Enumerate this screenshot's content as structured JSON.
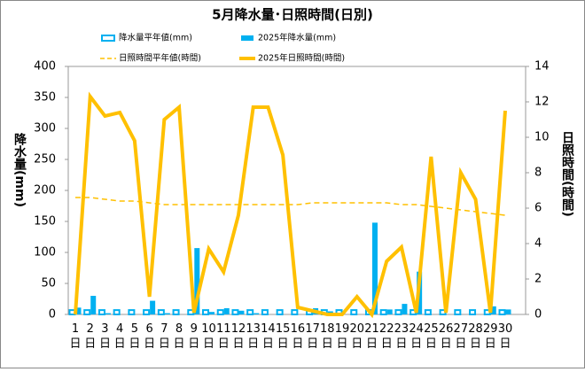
{
  "chart_data": {
    "type": "bar-line",
    "title": "5月降水量･日照時間(日別)",
    "y_label": "降水量(mm)",
    "y2_label": "日照時間(時間)",
    "categories": [
      "1日",
      "2日",
      "3日",
      "4日",
      "5日",
      "6日",
      "7日",
      "8日",
      "9日",
      "10日",
      "11日",
      "12日",
      "13日",
      "14日",
      "15日",
      "16日",
      "17日",
      "18日",
      "19日",
      "20日",
      "21日",
      "22日",
      "23日",
      "24日",
      "25日",
      "26日",
      "27日",
      "28日",
      "29日",
      "30日"
    ],
    "ylim": [
      0,
      400
    ],
    "yticks": [
      0,
      50,
      100,
      150,
      200,
      250,
      300,
      350,
      400
    ],
    "y2lim": [
      0,
      14
    ],
    "y2ticks": [
      0,
      2,
      4,
      6,
      8,
      10,
      12,
      14
    ],
    "grid": false,
    "series": [
      {
        "name": "降水量平年値(mm)",
        "type": "bar",
        "style": "outline",
        "color": "#00b0f0",
        "values": [
          7,
          7,
          7,
          7,
          7,
          7,
          7,
          7,
          7,
          7,
          7,
          7,
          7,
          7,
          7,
          7,
          7,
          7,
          7,
          7,
          7,
          7,
          7,
          7,
          7,
          7,
          7,
          7,
          7,
          7
        ]
      },
      {
        "name": "2025年降水量(mm)",
        "type": "bar",
        "style": "solid",
        "color": "#00b0f0",
        "values": [
          11,
          30,
          2,
          0,
          0,
          22,
          2,
          0,
          107,
          4,
          10,
          6,
          2,
          0,
          0,
          0,
          10,
          5,
          0,
          0,
          148,
          8,
          17,
          69,
          0,
          0,
          0,
          0,
          13,
          8
        ]
      },
      {
        "name": "日照時間平年値(時間)",
        "type": "line",
        "style": "dashed",
        "color": "#ffc000",
        "axis": "y2",
        "values": [
          6.6,
          6.6,
          6.5,
          6.4,
          6.4,
          6.3,
          6.2,
          6.2,
          6.2,
          6.2,
          6.2,
          6.2,
          6.2,
          6.2,
          6.2,
          6.2,
          6.3,
          6.3,
          6.3,
          6.3,
          6.3,
          6.3,
          6.2,
          6.2,
          6.1,
          6.0,
          5.9,
          5.8,
          5.7,
          5.6
        ]
      },
      {
        "name": "2025年日照時間(時間)",
        "type": "line",
        "style": "solid",
        "color": "#ffc000",
        "axis": "y2",
        "values": [
          0,
          12.3,
          11.2,
          11.4,
          9.8,
          1.0,
          11.0,
          11.7,
          0.1,
          3.7,
          2.4,
          5.6,
          11.7,
          11.7,
          9.0,
          0.4,
          0.2,
          0,
          0,
          1.0,
          0,
          3.0,
          3.8,
          0.1,
          8.9,
          0.1,
          8.0,
          6.5,
          0.1,
          11.5
        ]
      }
    ]
  }
}
